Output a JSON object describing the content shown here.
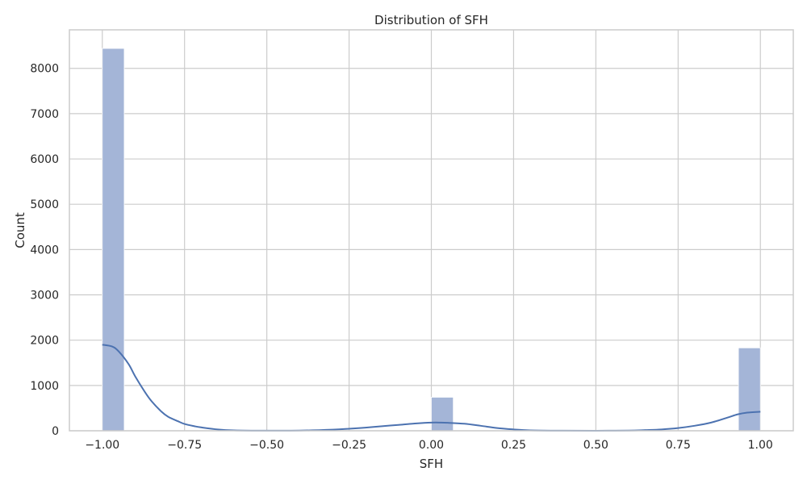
{
  "chart_data": {
    "type": "bar",
    "title": "Distribution of SFH",
    "xlabel": "SFH",
    "ylabel": "Count",
    "xlim": [
      -1.1,
      1.1
    ],
    "ylim": [
      0,
      8850
    ],
    "grid": true,
    "x_ticks": [
      -1.0,
      -0.75,
      -0.5,
      -0.25,
      0.0,
      0.25,
      0.5,
      0.75,
      1.0
    ],
    "x_tick_labels": [
      "−1.00",
      "−0.75",
      "−0.50",
      "−0.25",
      "0.00",
      "0.25",
      "0.50",
      "0.75",
      "1.00"
    ],
    "y_ticks": [
      0,
      1000,
      2000,
      3000,
      4000,
      5000,
      6000,
      7000,
      8000
    ],
    "y_tick_labels": [
      "0",
      "1000",
      "2000",
      "3000",
      "4000",
      "5000",
      "6000",
      "7000",
      "8000"
    ],
    "bars": [
      {
        "x0": -1.0,
        "x1": -0.9333,
        "value": 8440
      },
      {
        "x0": 0.0,
        "x1": 0.0667,
        "value": 740
      },
      {
        "x0": 0.9333,
        "x1": 1.0,
        "value": 1830
      }
    ],
    "kde": {
      "x": [
        -1.0,
        -0.97,
        -0.95,
        -0.92,
        -0.9,
        -0.87,
        -0.85,
        -0.82,
        -0.8,
        -0.77,
        -0.75,
        -0.72,
        -0.7,
        -0.65,
        -0.6,
        -0.5,
        -0.4,
        -0.3,
        -0.25,
        -0.2,
        -0.15,
        -0.1,
        -0.05,
        0.0,
        0.03,
        0.05,
        0.1,
        0.15,
        0.2,
        0.25,
        0.3,
        0.4,
        0.5,
        0.6,
        0.65,
        0.7,
        0.75,
        0.8,
        0.85,
        0.9,
        0.93,
        0.96,
        1.0
      ],
      "y": [
        1900,
        1860,
        1750,
        1470,
        1200,
        850,
        650,
        420,
        310,
        210,
        150,
        100,
        75,
        30,
        10,
        2,
        4,
        25,
        45,
        70,
        100,
        130,
        160,
        180,
        180,
        175,
        155,
        110,
        60,
        30,
        10,
        2,
        1,
        4,
        15,
        30,
        60,
        110,
        180,
        290,
        360,
        400,
        420
      ]
    },
    "colors": {
      "bar_fill": "#a4b5d7",
      "bar_edge": "#ffffff",
      "kde_line": "#4c72b0",
      "grid": "#cccccc",
      "frame": "#cccccc"
    }
  }
}
